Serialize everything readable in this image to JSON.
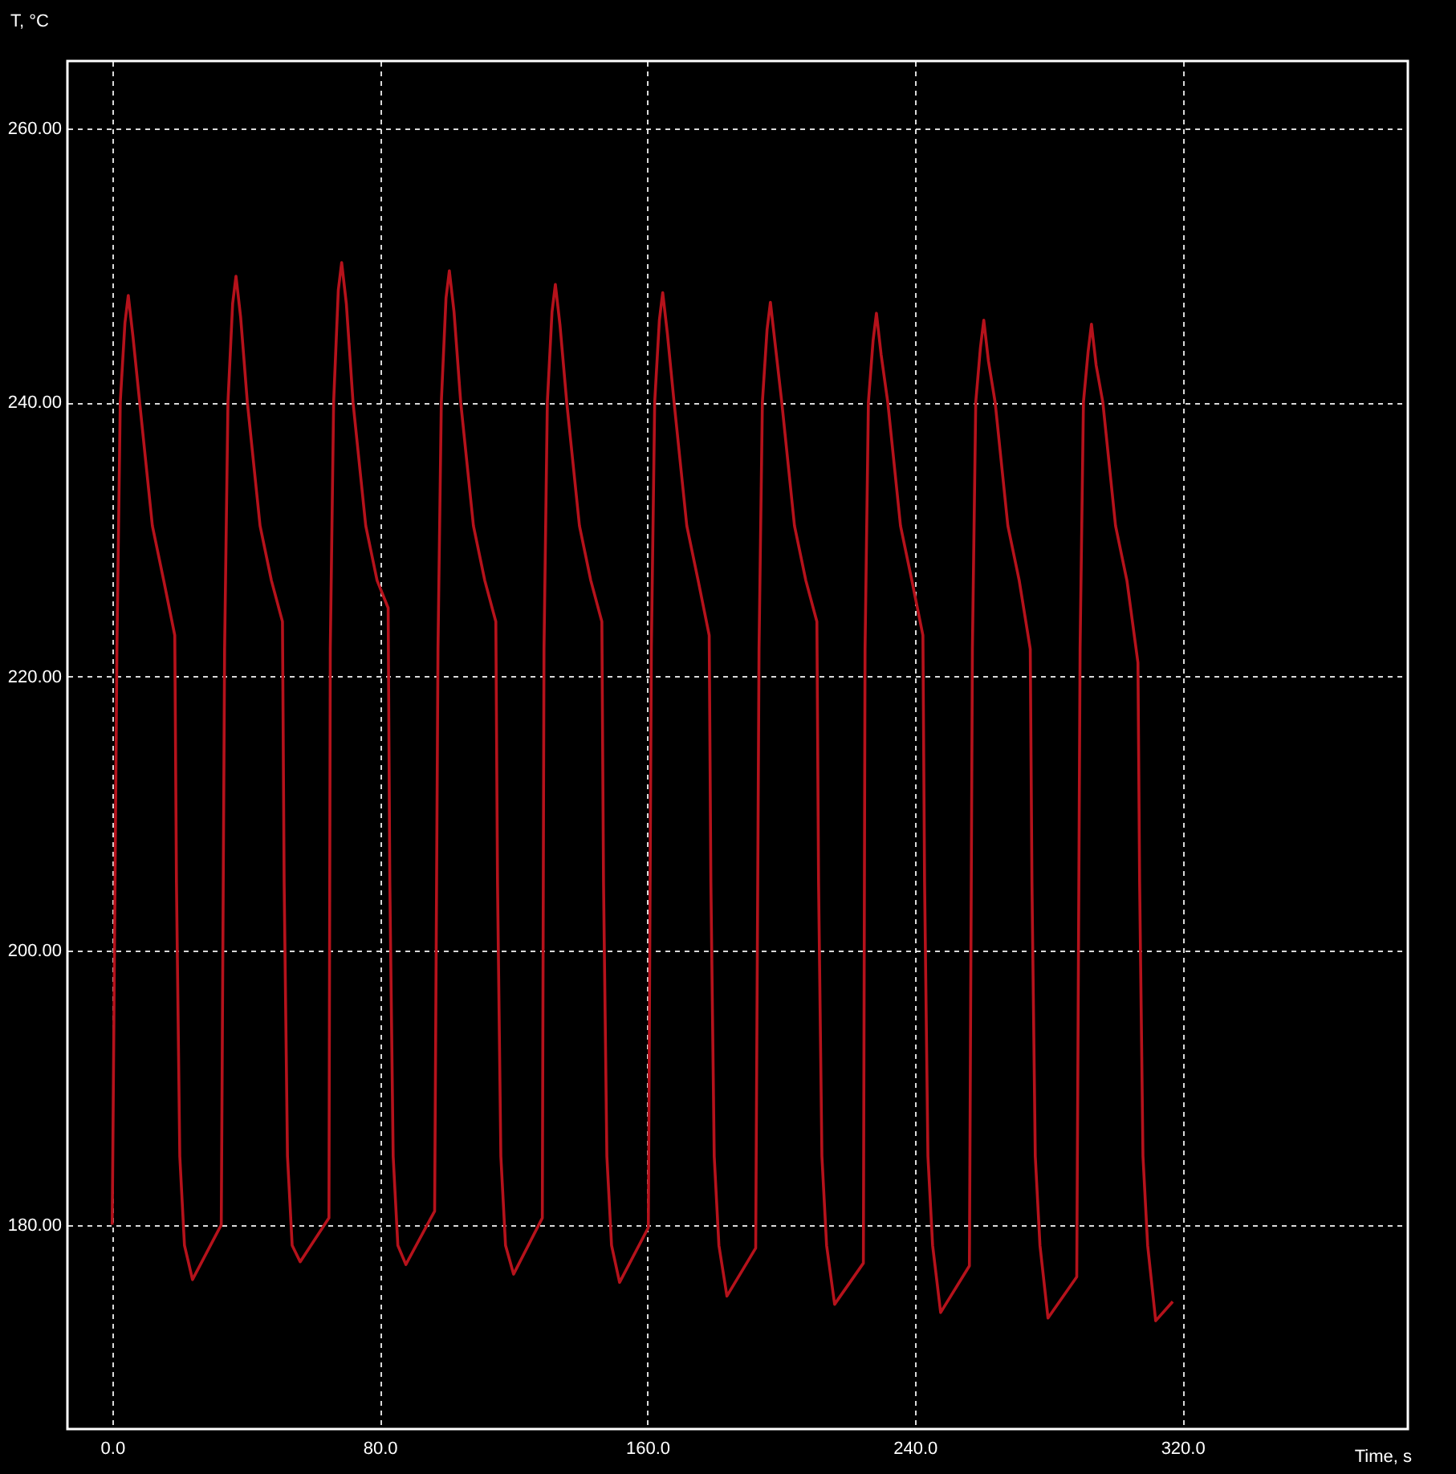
{
  "chart_data": {
    "type": "line",
    "xlabel": "Time, s",
    "ylabel": "T, °C",
    "xlim": [
      -13.4,
      387.4
    ],
    "ylim": [
      165.1,
      264.9
    ],
    "xticks": [
      {
        "value": 0,
        "label": "0.0"
      },
      {
        "value": 80,
        "label": "80.0"
      },
      {
        "value": 160,
        "label": "160.0"
      },
      {
        "value": 240,
        "label": "240.0"
      },
      {
        "value": 320,
        "label": "320.0"
      }
    ],
    "yticks": [
      {
        "value": 180,
        "label": "180.00"
      },
      {
        "value": 200,
        "label": "200.00"
      },
      {
        "value": 220,
        "label": "220.00"
      },
      {
        "value": 240,
        "label": "240.00"
      },
      {
        "value": 260,
        "label": "260.00"
      }
    ],
    "grid": true,
    "series": [
      {
        "color": "#b5121b",
        "x": [
          0,
          1.4,
          2.4,
          3.8,
          4.8,
          6.2,
          8.2,
          12.0,
          15.4,
          18.7,
          19.2,
          20.2,
          21.6,
          24.0,
          32.6,
          33.6,
          34.6,
          36.0,
          37.0,
          38.4,
          40.4,
          44.2,
          47.6,
          50.9,
          51.4,
          52.4,
          53.8,
          56.2,
          64.8,
          65.2,
          66.2,
          67.6,
          68.6,
          70.0,
          72.0,
          75.8,
          79.2,
          82.5,
          83.0,
          84.0,
          85.4,
          87.8,
          96.4,
          97.4,
          98.4,
          99.8,
          100.8,
          102.2,
          104.2,
          108.0,
          111.4,
          114.7,
          115.2,
          116.2,
          117.6,
          120.0,
          128.6,
          129.1,
          130.1,
          131.5,
          132.5,
          133.9,
          135.9,
          139.7,
          143.1,
          146.4,
          146.9,
          147.9,
          149.3,
          151.7,
          160.3,
          161.2,
          162.2,
          163.6,
          164.6,
          166.0,
          168.0,
          171.8,
          175.2,
          178.5,
          179.0,
          180.0,
          181.4,
          183.8,
          192.4,
          193.4,
          194.4,
          195.8,
          196.8,
          198.2,
          200.2,
          204.0,
          207.4,
          210.7,
          211.2,
          212.2,
          213.6,
          216.0,
          224.6,
          225.1,
          226.1,
          227.5,
          228.5,
          229.9,
          231.9,
          235.7,
          239.1,
          242.4,
          242.9,
          243.9,
          245.3,
          247.7,
          256.3,
          257.2,
          258.2,
          259.6,
          260.6,
          262.0,
          264.0,
          267.8,
          271.2,
          274.5,
          275.0,
          276.0,
          277.4,
          279.8,
          288.4,
          289.4,
          290.4,
          291.8,
          292.8,
          294.2,
          296.2,
          300.0,
          303.4,
          306.7,
          307.2,
          308.2,
          309.6,
          312.0,
          317.1
        ],
        "values": [
          180,
          222,
          240,
          245.8,
          247.8,
          244.8,
          240,
          231,
          227,
          223,
          205,
          185,
          178.5,
          176.0,
          180.0,
          222,
          240,
          247.2,
          249.2,
          246.2,
          240,
          231,
          227,
          224,
          205,
          185,
          178.5,
          177.3,
          180.5,
          222,
          240,
          248.2,
          250.2,
          247.2,
          240,
          231,
          227,
          225,
          205,
          185,
          178.5,
          177.1,
          181.0,
          222,
          240,
          247.6,
          249.6,
          246.6,
          240,
          231,
          227,
          224,
          205,
          185,
          178.5,
          176.4,
          180.5,
          222,
          240,
          246.6,
          248.6,
          245.6,
          240,
          231,
          227,
          224,
          205,
          185,
          178.5,
          175.8,
          179.8,
          222,
          240,
          246.0,
          248.0,
          245.0,
          240,
          231,
          227,
          223,
          205,
          185,
          178.5,
          174.8,
          178.3,
          222,
          240,
          245.3,
          247.3,
          244.3,
          240,
          231,
          227,
          224,
          205,
          185,
          178.5,
          174.2,
          177.2,
          222,
          240,
          244.5,
          246.5,
          243.5,
          240,
          231,
          227,
          223,
          205,
          185,
          178.5,
          173.6,
          177.0,
          222,
          240,
          244.0,
          246.0,
          243.0,
          240,
          231,
          227,
          222,
          205,
          185,
          178.5,
          173.2,
          176.2,
          222,
          240,
          243.7,
          245.7,
          242.7,
          240,
          231,
          227,
          221,
          205,
          185,
          178.5,
          173.0,
          174.4
        ]
      }
    ]
  }
}
